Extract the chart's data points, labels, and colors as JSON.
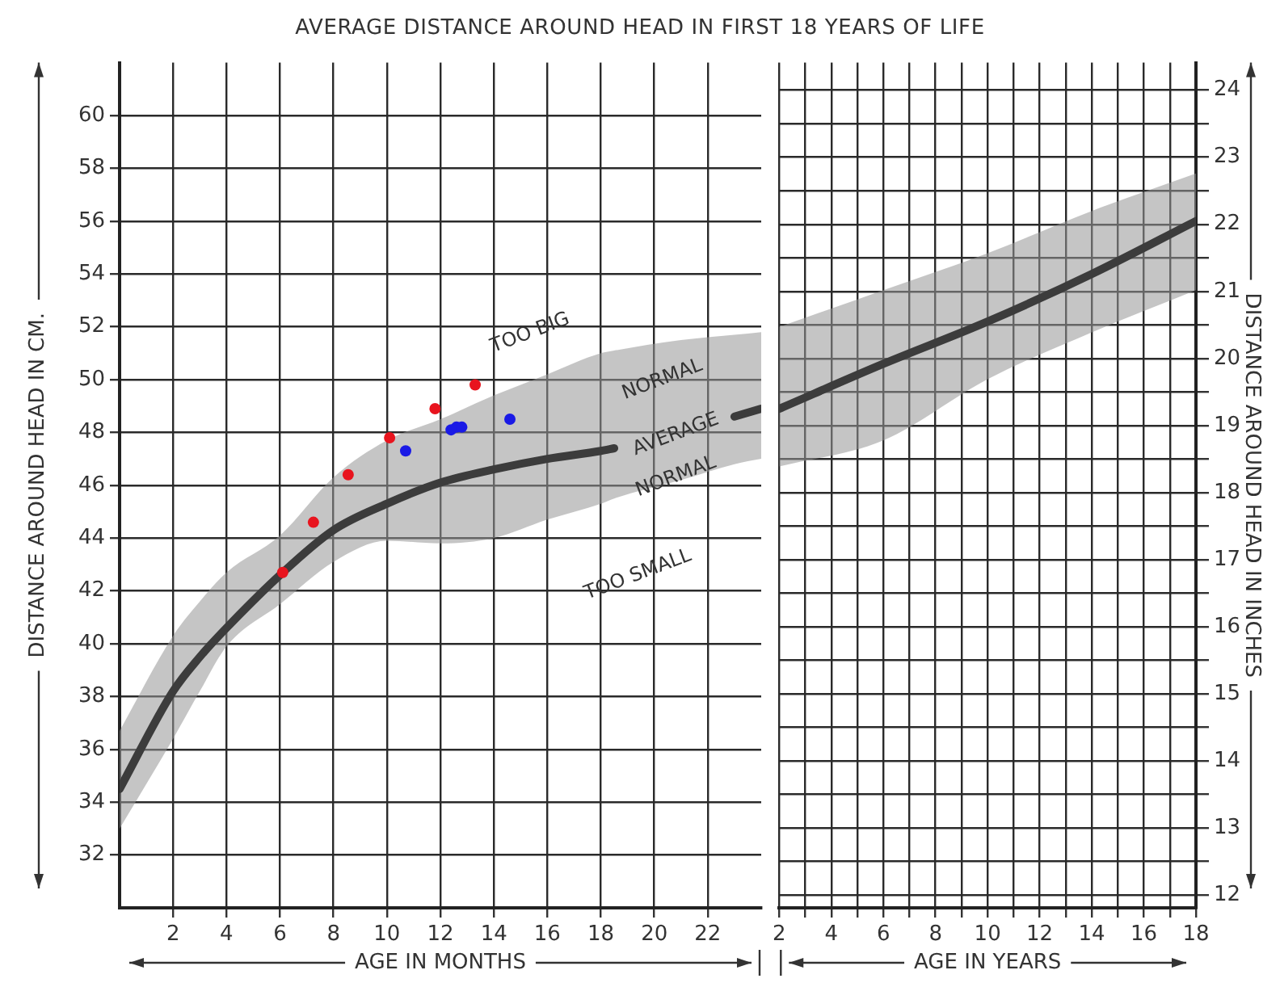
{
  "chart_data": [
    {
      "type": "line",
      "title": "AVERAGE DISTANCE AROUND HEAD IN FIRST 18 YEARS OF LIFE",
      "xlabel": "AGE IN MONTHS",
      "ylabel": "DISTANCE AROUND HEAD IN CM.",
      "xlim": [
        0,
        24
      ],
      "xticks": [
        2,
        4,
        6,
        8,
        10,
        12,
        14,
        16,
        18,
        20,
        22
      ],
      "ylim": [
        30,
        62
      ],
      "yticks": [
        32,
        34,
        36,
        38,
        40,
        42,
        44,
        46,
        48,
        50,
        52,
        54,
        56,
        58,
        60
      ],
      "grid": true,
      "series": [
        {
          "type": "line",
          "color": "#3c3c3c",
          "marker": "none",
          "x": [
            0,
            2,
            3,
            4,
            6,
            8,
            10,
            12,
            14,
            16,
            18,
            18.5,
            21,
            23,
            24
          ],
          "values": [
            34.5,
            38.2,
            39.5,
            40.6,
            42.6,
            44.3,
            45.3,
            46.1,
            46.6,
            47.0,
            47.3,
            47.4,
            null,
            48.6,
            48.9
          ],
          "lower": [
            33.0,
            36.4,
            38.2,
            39.9,
            41.5,
            43.1,
            43.9,
            43.8,
            44.0,
            44.7,
            45.3,
            45.5,
            46.2,
            46.8,
            47.0
          ],
          "upper": [
            36.7,
            40.3,
            41.6,
            42.7,
            44.1,
            46.3,
            47.7,
            48.5,
            49.4,
            50.2,
            51.0,
            51.1,
            51.5,
            51.7,
            51.8
          ]
        },
        {
          "type": "scatter",
          "color": "#e8141e",
          "marker": "circle",
          "x": [
            6.1,
            7.25,
            8.55,
            10.1,
            11.8,
            13.3
          ],
          "values": [
            42.7,
            44.6,
            46.4,
            47.8,
            48.9,
            49.8
          ]
        },
        {
          "type": "scatter",
          "color": "#1a1ae6",
          "marker": "circle",
          "x": [
            10.7,
            12.4,
            12.6,
            12.8,
            14.6
          ],
          "values": [
            47.3,
            48.1,
            48.2,
            48.2,
            48.5
          ]
        }
      ],
      "annotations": [
        "TOO BIG",
        "NORMAL",
        "AVERAGE",
        "NORMAL",
        "TOO SMALL"
      ]
    },
    {
      "type": "line",
      "xlabel": "AGE IN YEARS",
      "y2label": "DISTANCE AROUND HEAD IN INCHES",
      "xlim": [
        2,
        18
      ],
      "xticks": [
        2,
        {
          "value": 3,
          "label": null
        },
        4,
        {
          "value": 5,
          "label": null
        },
        6,
        {
          "value": 7,
          "label": null
        },
        8,
        {
          "value": 9,
          "label": null
        },
        10,
        {
          "value": 11,
          "label": null
        },
        12,
        {
          "value": 13,
          "label": null
        },
        14,
        {
          "value": 15,
          "label": null
        },
        16,
        {
          "value": 17,
          "label": null
        },
        18
      ],
      "y2lim": [
        11.81,
        24.41
      ],
      "y2ticks": [
        12,
        {
          "value": 12.5,
          "label": null
        },
        13,
        {
          "value": 13.5,
          "label": null
        },
        14,
        {
          "value": 14.5,
          "label": null
        },
        15,
        {
          "value": 15.5,
          "label": null
        },
        16,
        {
          "value": 16.5,
          "label": null
        },
        17,
        {
          "value": 17.5,
          "label": null
        },
        18,
        {
          "value": 18.5,
          "label": null
        },
        19,
        {
          "value": 19.5,
          "label": null
        },
        20,
        {
          "value": 20.5,
          "label": null
        },
        21,
        {
          "value": 21.5,
          "label": null
        },
        22,
        {
          "value": 22.5,
          "label": null
        },
        23,
        {
          "value": 23.5,
          "label": null
        },
        24
      ],
      "grid": true,
      "series": [
        {
          "type": "line",
          "axis": "y2",
          "color": "#3c3c3c",
          "marker": "none",
          "x": [
            2,
            6,
            10,
            14,
            18
          ],
          "values": [
            19.25,
            19.92,
            20.55,
            21.26,
            22.05
          ],
          "lower": [
            18.39,
            18.78,
            19.69,
            20.39,
            21.02
          ],
          "upper": [
            20.47,
            21.02,
            21.57,
            22.2,
            22.76
          ]
        }
      ]
    }
  ]
}
